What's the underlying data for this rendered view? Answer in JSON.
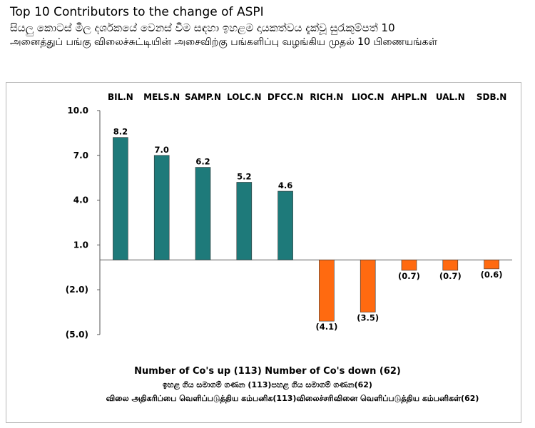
{
  "header": {
    "title_en": "Top 10 Contributors to the change of ASPI",
    "title_si": "සියලු කොටස් මිල දර්ශකයේ වෙනස් වීම සඳහා ඉහළම දායකත්වය දැක්වූ සුරැකුම්පත් 10",
    "title_ta": "அனைத்துப் பங்கு விலைச்சுட்டியின் அசைவிற்கு பங்களிப்பு வழங்கிய முதல் 10 பிணையங்கள்"
  },
  "footer": {
    "en": "Number of Co's up (113) Number of Co's down  (62)",
    "si": "ඉහළ ගිය සමාගම් ගණන (113)පහළ ගිය සමාගම් ගණන(62)",
    "ta": "விலை அதிகரிப்பை வெளிப்படுத்திய கம்பனிக(113)விலைச்சரிவினை வெளிப்படுத்திய கம்பனிகள்(62)"
  },
  "colors": {
    "positive": "#1e7a7a",
    "negative": "#ff6a10",
    "axis": "#555555"
  },
  "chart_data": {
    "type": "bar",
    "title": "Top 10 Contributors to the change of ASPI",
    "categories": [
      "BIL.N",
      "MELS.N",
      "SAMP.N",
      "LOLC.N",
      "DFCC.N",
      "RICH.N",
      "LIOC.N",
      "AHPL.N",
      "UAL.N",
      "SDB.N"
    ],
    "values": [
      8.2,
      7.0,
      6.2,
      5.2,
      4.6,
      -4.1,
      -3.5,
      -0.7,
      -0.7,
      -0.6
    ],
    "value_labels": [
      "8.2",
      "7.0",
      "6.2",
      "5.2",
      "4.6",
      "(4.1)",
      "(3.5)",
      "(0.7)",
      "(0.7)",
      "(0.6)"
    ],
    "yticks": [
      10.0,
      7.0,
      4.0,
      1.0,
      -2.0,
      -5.0
    ],
    "ytick_labels": [
      "10.0",
      "7.0",
      "4.0",
      "1.0",
      "(2.0)",
      "(5.0)"
    ],
    "ylim": [
      -5.0,
      10.0
    ],
    "xlabel": "",
    "ylabel": "",
    "grid": false,
    "legend": "none"
  }
}
